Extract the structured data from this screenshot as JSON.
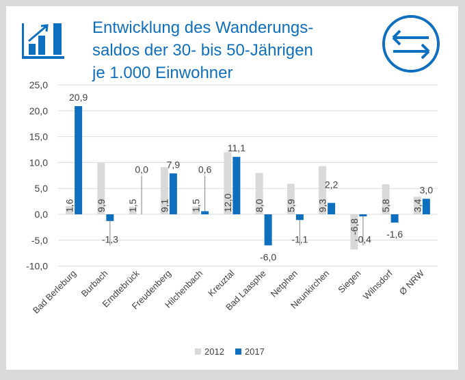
{
  "chart_data": {
    "type": "bar",
    "title": "Entwicklung des Wanderungs- saldos der 30- bis 50-Jährigen je 1.000 Einwohner",
    "title_lines": [
      "Entwicklung des Wanderungs-",
      "saldos der 30- bis 50-Jährigen",
      "je 1.000 Einwohner"
    ],
    "categories": [
      "Bad Berleburg",
      "Burbach",
      "Erndtebrück",
      "Freudenberg",
      "Hilchenbach",
      "Kreuztal",
      "Bad Laasphe",
      "Netphen",
      "Neunkirchen",
      "Siegen",
      "Wilnsdorf",
      "Ø NRW"
    ],
    "series": [
      {
        "name": "2012",
        "color": "#d9d9d9",
        "values": [
          1.6,
          9.9,
          1.5,
          9.1,
          1.5,
          12.0,
          8.0,
          5.9,
          9.3,
          -6.8,
          5.8,
          3.4
        ],
        "labels": [
          "1,6",
          "9,9",
          "1,5",
          "9,1",
          "1,5",
          "12,0",
          "8,0",
          "5,9",
          "9,3",
          "-6,8",
          "5,8",
          "3,4"
        ]
      },
      {
        "name": "2017",
        "color": "#0f6fbf",
        "values": [
          20.9,
          -1.3,
          0.0,
          7.9,
          0.6,
          11.1,
          -6.0,
          -1.1,
          2.2,
          -0.4,
          -1.6,
          3.0
        ],
        "labels": [
          "20,9",
          "-1,3",
          "0,0",
          "7,9",
          "0,6",
          "11,1",
          "-6,0",
          "-1,1",
          "2,2",
          "-0,4",
          "-1,6",
          "3,0"
        ]
      }
    ],
    "yticks": [
      "25,0",
      "20,0",
      "15,0",
      "10,0",
      "5,0",
      "0,0",
      "-5,0",
      "-10,0"
    ],
    "ytick_values": [
      25,
      20,
      15,
      10,
      5,
      0,
      -5,
      -10
    ],
    "ylim": [
      -10,
      25
    ],
    "grid": true,
    "legend": "bottom"
  }
}
